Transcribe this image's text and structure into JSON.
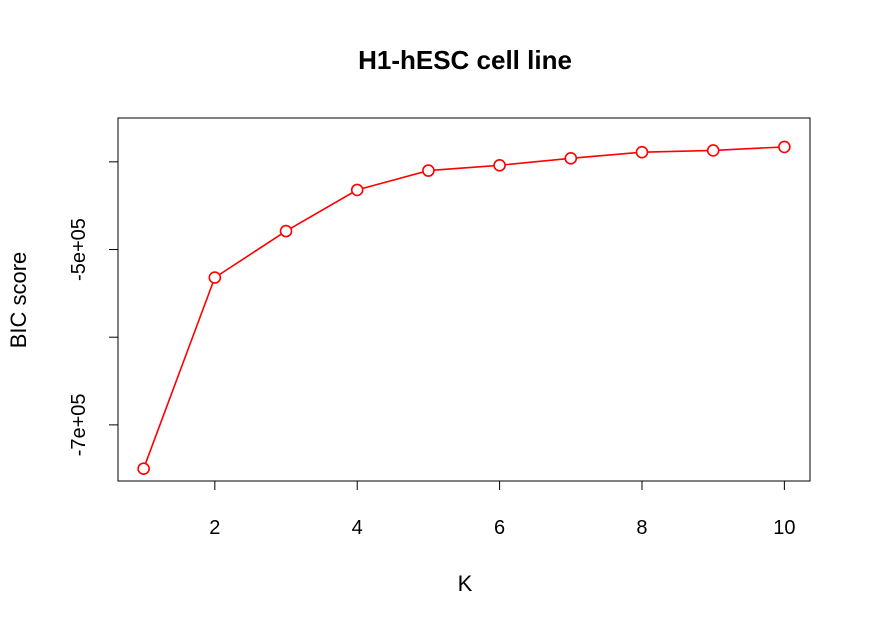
{
  "chart_data": {
    "type": "line",
    "title": "H1-hESC cell line",
    "xlabel": "K",
    "ylabel": "BIC score",
    "x": [
      1,
      2,
      3,
      4,
      5,
      6,
      7,
      8,
      9,
      10
    ],
    "series": [
      {
        "values": [
          -750000,
          -532000,
          -479000,
          -432000,
          -410000,
          -404000,
          -396000,
          -389000,
          -387000,
          -383000
        ],
        "color": "#ff0000",
        "marker": "open-circle"
      }
    ],
    "xticks": [
      2,
      4,
      6,
      8,
      10
    ],
    "xtick_labels": [
      "2",
      "4",
      "6",
      "8",
      "10"
    ],
    "yticks": [
      -400000,
      -500000,
      -600000,
      -700000
    ],
    "ytick_labels": [
      "",
      "-5e+05",
      "",
      "-7e+05"
    ],
    "xlim": [
      0.64,
      10.36
    ],
    "ylim": [
      -764000,
      -350000
    ],
    "grid": false,
    "legend": "none"
  }
}
